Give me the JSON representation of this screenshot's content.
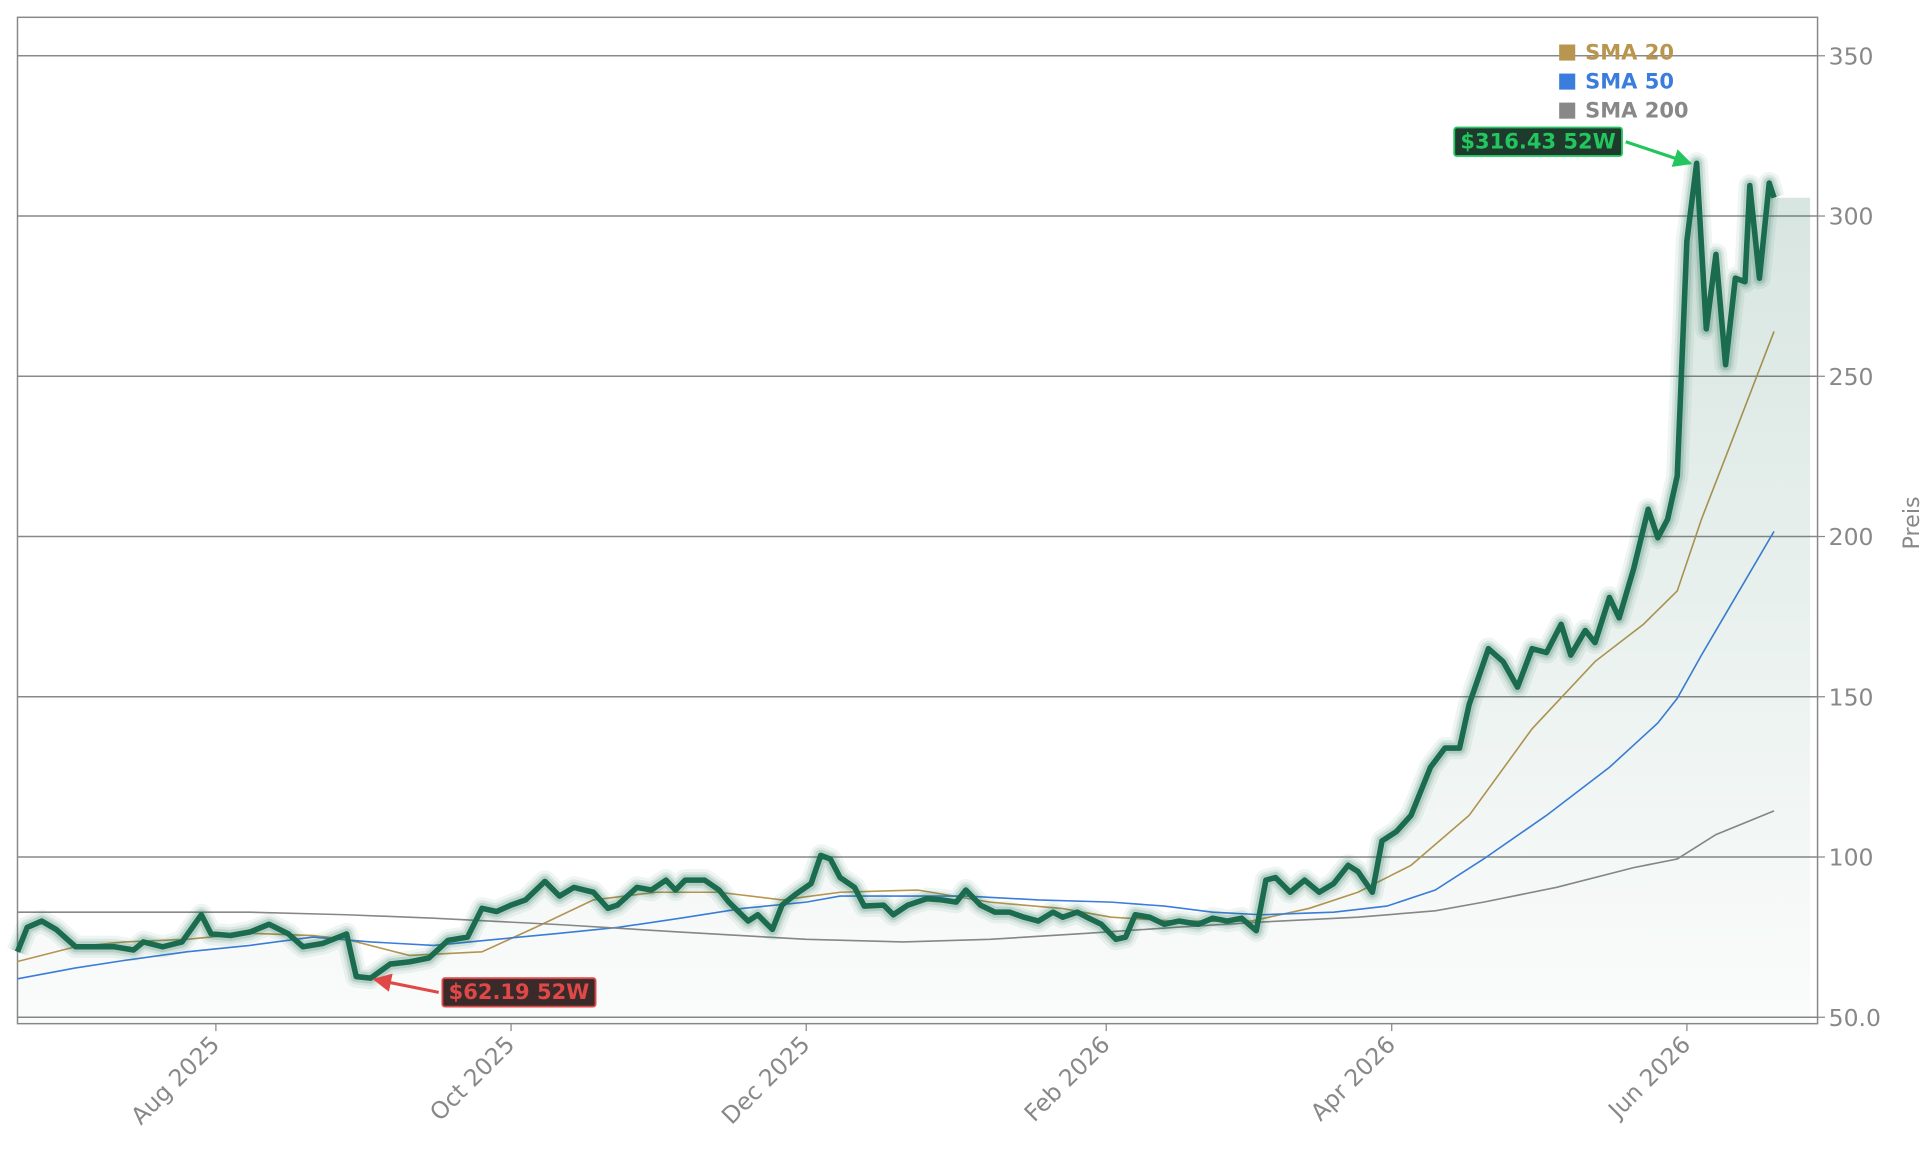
{
  "chart_data": {
    "type": "line",
    "y_label": "Preis",
    "xlim": [
      -41,
      331
    ],
    "ylim": [
      48,
      362
    ],
    "xticks": [
      {
        "value": 0,
        "label": "Aug 2025"
      },
      {
        "value": 61,
        "label": "Oct 2025"
      },
      {
        "value": 122,
        "label": "Dec 2025"
      },
      {
        "value": 184,
        "label": "Feb 2026"
      },
      {
        "value": 243,
        "label": "Apr 2026"
      },
      {
        "value": 304,
        "label": "Jun 2026"
      }
    ],
    "yticks": [
      {
        "value": 50,
        "label": "50.0"
      },
      100,
      150,
      200,
      250,
      300,
      350
    ],
    "grid": true,
    "legend": "upper right",
    "series": [
      {
        "color": "#1b6b4f",
        "x": [
          -41,
          -39,
          -36,
          -33,
          -29,
          -25,
          -21,
          -17,
          -15,
          -11,
          -7,
          -3,
          -1,
          3,
          7,
          11,
          15,
          18,
          22,
          27,
          29,
          32,
          36,
          40,
          44,
          48,
          52,
          55,
          58,
          61,
          64,
          68,
          71,
          74,
          78,
          81,
          83,
          87,
          90,
          93,
          95,
          97,
          101,
          104,
          106,
          110,
          112,
          115,
          117,
          120,
          123,
          125,
          127,
          129,
          132,
          134,
          138,
          140,
          143,
          147,
          150,
          153,
          155,
          158,
          161,
          164,
          167,
          170,
          173,
          175,
          178,
          180,
          183,
          186,
          188,
          190,
          193,
          196,
          199,
          203,
          206,
          209,
          212,
          215,
          217,
          219,
          222,
          225,
          228,
          231,
          234,
          236,
          239,
          241,
          244,
          247,
          251,
          254,
          257,
          259,
          263,
          266,
          269,
          272,
          275,
          278,
          280,
          283,
          285,
          288,
          290,
          293,
          296,
          298,
          300,
          302,
          304,
          306,
          308,
          310,
          312,
          314,
          316,
          317,
          319,
          321,
          322
        ],
        "values": [
          70.4,
          78,
          80,
          77.4,
          72,
          72,
          72,
          71,
          73.5,
          72,
          73.5,
          82,
          76,
          75.5,
          76.6,
          79,
          76,
          72,
          73,
          76,
          62.7,
          62.19,
          66.6,
          67.3,
          68.5,
          74,
          75,
          84,
          83,
          85,
          86.6,
          92.4,
          87.8,
          90.5,
          89,
          84,
          85,
          90.5,
          89.7,
          92.8,
          89.7,
          92.8,
          92.8,
          89.7,
          85.9,
          80,
          82,
          77.4,
          85,
          88.6,
          91.7,
          100.5,
          99.4,
          93.6,
          90.5,
          84.7,
          85,
          82,
          85,
          87,
          86.6,
          85.9,
          89.7,
          85,
          82.8,
          82.8,
          81.2,
          80,
          82.8,
          81.2,
          82.8,
          81.2,
          79,
          74.3,
          75,
          82,
          81.2,
          79,
          80,
          79,
          80.9,
          80,
          80.9,
          77,
          92.8,
          93.6,
          89,
          92.8,
          89,
          91.7,
          97.4,
          95.5,
          89,
          105,
          108,
          113,
          128,
          134,
          134,
          147.6,
          165,
          161,
          153,
          165,
          163.8,
          172.6,
          163,
          170.7,
          166.9,
          181,
          174.6,
          190,
          208.5,
          199.6,
          205.4,
          218.9,
          292.2,
          316.43,
          264.8,
          288,
          253.6,
          280.6,
          279.5,
          309.5,
          280.6,
          310.3,
          305.7
        ]
      },
      {
        "name": "SMA 20",
        "color": "#b8964f",
        "x": [
          -41,
          -29,
          -19,
          -6,
          7,
          20,
          27,
          40,
          55,
          66,
          78,
          91,
          104,
          117,
          129,
          145,
          160,
          175,
          185,
          198,
          214,
          226,
          236,
          247,
          259,
          272,
          285,
          295,
          302,
          307,
          313,
          322
        ],
        "values": [
          67.4,
          72,
          73.5,
          74.3,
          76.2,
          75.5,
          74.3,
          69.3,
          70.4,
          78,
          86.6,
          89,
          89,
          86.6,
          89,
          89.7,
          85.9,
          83.9,
          81.2,
          80,
          80,
          84,
          89,
          97.4,
          113,
          140,
          161,
          172.6,
          183,
          205.4,
          228.6,
          264
        ]
      },
      {
        "name": "SMA 50",
        "color": "#3b7ddd",
        "x": [
          -41,
          -29,
          -19,
          -6,
          7,
          20,
          32,
          45,
          58,
          71,
          83,
          96,
          109,
          122,
          129,
          140,
          155,
          170,
          185,
          196,
          206,
          216,
          231,
          242,
          252,
          262,
          275,
          288,
          298,
          302,
          307,
          313,
          322
        ],
        "values": [
          62,
          65.4,
          67.7,
          70.4,
          72.4,
          75,
          73.5,
          72.4,
          74.3,
          76.2,
          78,
          80.9,
          84,
          85.9,
          87.8,
          87.8,
          87.8,
          86.6,
          85.9,
          84.7,
          82.8,
          82,
          82.8,
          84.7,
          89.7,
          99.4,
          113,
          128,
          141.8,
          149.5,
          163,
          178.4,
          201.6
        ]
      },
      {
        "name": "SMA 200",
        "color": "#888888",
        "x": [
          -41,
          -19,
          7,
          27,
          45,
          71,
          96,
          122,
          142,
          160,
          180,
          198,
          216,
          236,
          252,
          262,
          277,
          293,
          302,
          310,
          322
        ],
        "values": [
          82.8,
          82.8,
          82.8,
          82,
          80.9,
          78.9,
          76.6,
          74.3,
          73.5,
          74.3,
          76.2,
          78,
          79.7,
          81.2,
          83.2,
          85.9,
          90.5,
          96.7,
          99.4,
          107,
          114.4
        ]
      }
    ],
    "annotations": [
      {
        "text": "$316.43 52W",
        "x": 306,
        "y": 316.43,
        "color": "#22c55e"
      },
      {
        "text": "$62.19 52W",
        "x": 32,
        "y": 62.19,
        "color": "#e04848"
      }
    ]
  }
}
